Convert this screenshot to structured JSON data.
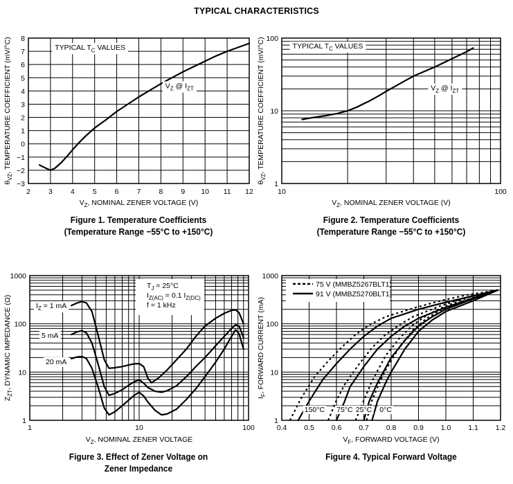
{
  "page": {
    "title": "TYPICAL CHARACTERISTICS"
  },
  "chart_data": [
    {
      "id": "fig1",
      "type": "line",
      "caption_line1": "Figure 1. Temperature Coefficients",
      "caption_line2": "(Temperature Range −55°C to +150°C)",
      "xlabel": "VZ, NOMINAL ZENER VOLTAGE (V)",
      "xlabel_main": "V",
      "xlabel_sub": "Z",
      "xlabel_rest": ", NOMINAL ZENER VOLTAGE (V)",
      "ylabel_main": "θ",
      "ylabel_sub": "VZ",
      "ylabel_rest": ", TEMPERATURE COEFFICIENT (mV/°C)",
      "xscale": "linear",
      "yscale": "linear",
      "xlim": [
        2,
        12
      ],
      "ylim": [
        -3,
        8
      ],
      "xticks": [
        2,
        3,
        4,
        5,
        6,
        7,
        8,
        9,
        10,
        11,
        12
      ],
      "xtick_labels": [
        "2",
        "3",
        "4",
        "5",
        "6",
        "7",
        "8",
        "9",
        "10",
        "11",
        "12"
      ],
      "yticks": [
        -3,
        -2,
        -1,
        0,
        1,
        2,
        3,
        4,
        5,
        6,
        7,
        8
      ],
      "ytick_labels": [
        "−3",
        "−2",
        "−1",
        "0",
        "1",
        "2",
        "3",
        "4",
        "5",
        "6",
        "7",
        "8"
      ],
      "grid": true,
      "annotations": [
        {
          "text_main": "TYPICAL T",
          "text_sub": "C",
          "text_rest": " VALUES",
          "at": [
            3.2,
            7.1
          ]
        },
        {
          "text_main": "V",
          "text_sub": "Z",
          "text_rest": " @ I",
          "text_sub2": "ZT",
          "at": [
            8.2,
            4.2
          ]
        }
      ],
      "series": [
        {
          "name": "VZ @ IZT",
          "style": "solid",
          "x": [
            2.5,
            2.8,
            3.0,
            3.2,
            3.5,
            3.8,
            4.0,
            4.3,
            4.6,
            5.0,
            5.5,
            6.0,
            6.5,
            7.0,
            7.5,
            8.0,
            8.5,
            9.0,
            9.5,
            10.0,
            10.5,
            11.0,
            11.5,
            12.0
          ],
          "y": [
            -1.6,
            -1.85,
            -2.0,
            -1.85,
            -1.4,
            -0.85,
            -0.45,
            0.1,
            0.6,
            1.2,
            1.8,
            2.45,
            3.0,
            3.55,
            4.05,
            4.55,
            5.0,
            5.45,
            5.85,
            6.25,
            6.65,
            7.0,
            7.3,
            7.6
          ]
        }
      ]
    },
    {
      "id": "fig2",
      "type": "line",
      "caption_line1": "Figure 2. Temperature Coefficients",
      "caption_line2": "(Temperature Range −55°C to +150°C)",
      "xlabel": "VZ, NOMINAL ZENER VOLTAGE (V)",
      "xlabel_main": "V",
      "xlabel_sub": "Z",
      "xlabel_rest": ", NOMINAL ZENER VOLTAGE (V)",
      "ylabel_main": "θ",
      "ylabel_sub": "VZ",
      "ylabel_rest": ", TEMPERATURE COEFFICIENT (mV/°C)",
      "xscale": "log",
      "yscale": "log",
      "xlim": [
        10,
        100
      ],
      "ylim": [
        1,
        100
      ],
      "xticks": [
        10,
        100
      ],
      "xtick_labels": [
        "10",
        "100"
      ],
      "yticks": [
        1,
        10,
        100
      ],
      "ytick_labels": [
        "1",
        "10",
        "100"
      ],
      "grid": true,
      "annotations": [
        {
          "text_main": "TYPICAL T",
          "text_sub": "C",
          "text_rest": " VALUES",
          "at": [
            11.2,
            72
          ]
        },
        {
          "text_main": "V",
          "text_sub": "Z",
          "text_rest": " @ I",
          "text_sub2": "ZT",
          "at": [
            48,
            19
          ]
        }
      ],
      "series": [
        {
          "name": "VZ @ IZT",
          "style": "solid",
          "x": [
            12.4,
            14,
            16,
            18,
            20,
            22,
            25,
            28,
            30,
            35,
            40,
            50,
            60,
            70,
            75
          ],
          "y": [
            7.6,
            8.1,
            8.6,
            9.2,
            10.0,
            11.2,
            13.5,
            16.3,
            18.5,
            24,
            30,
            40,
            52,
            65,
            73
          ]
        }
      ]
    },
    {
      "id": "fig3",
      "type": "line",
      "caption_line1": "Figure 3. Effect of Zener Voltage on",
      "caption_line2": "Zener Impedance",
      "xlabel": "VZ, NOMINAL ZENER VOLTAGE",
      "xlabel_main": "V",
      "xlabel_sub": "Z",
      "xlabel_rest": ", NOMINAL ZENER VOLTAGE",
      "ylabel_main": "Z",
      "ylabel_sub": "ZT",
      "ylabel_rest": ", DYNAMIC IMPEDANCE (Ω)",
      "xscale": "log",
      "yscale": "log",
      "xlim": [
        1,
        100
      ],
      "ylim": [
        1,
        1000
      ],
      "xticks": [
        1,
        10,
        100
      ],
      "xtick_labels": [
        "1",
        "10",
        "100"
      ],
      "yticks": [
        1,
        10,
        100,
        1000
      ],
      "ytick_labels": [
        "1",
        "10",
        "100",
        "1000"
      ],
      "grid": true,
      "conditions": [
        "T_J = 25°C",
        "I_Z(AC) = 0.1 I_Z(DC)",
        "f = 1 kHz"
      ],
      "conditions_display": [
        {
          "main": "T",
          "sub": "J",
          "rest": " = 25°C"
        },
        {
          "main": "I",
          "sub": "Z(AC)",
          "rest": " = 0.1 I",
          "sub2": "Z(DC)"
        },
        {
          "main": "f = 1 kHz",
          "sub": "",
          "rest": ""
        }
      ],
      "series": [
        {
          "name": "IZ = 1 mA",
          "label_main": "I",
          "label_sub": "Z",
          "label_rest": " = 1 mA",
          "style": "solid",
          "x": [
            2.4,
            2.7,
            3.0,
            3.3,
            3.7,
            4.2,
            4.8,
            5.3,
            6,
            7,
            8,
            9,
            10,
            11,
            12,
            13,
            15,
            18,
            22,
            27,
            33,
            40,
            50,
            60,
            70,
            76,
            82,
            90
          ],
          "y": [
            240,
            270,
            290,
            270,
            180,
            60,
            18,
            12,
            12.3,
            13,
            14,
            14.8,
            15,
            13,
            7.5,
            6,
            7.5,
            11,
            18,
            30,
            55,
            90,
            130,
            165,
            190,
            195,
            170,
            100
          ]
        },
        {
          "name": "5 mA",
          "label_main": "5 mA",
          "label_sub": "",
          "label_rest": "",
          "style": "solid",
          "x": [
            2.4,
            2.7,
            3.0,
            3.3,
            3.7,
            4.2,
            4.8,
            5.3,
            6,
            7,
            8,
            9,
            10,
            11,
            12,
            14,
            16,
            18,
            22,
            27,
            33,
            40,
            50,
            60,
            70,
            76,
            82,
            90
          ],
          "y": [
            60,
            68,
            72,
            65,
            40,
            15,
            5,
            3.3,
            3.6,
            4.3,
            5.3,
            6.3,
            6.9,
            5.9,
            4.8,
            4.0,
            3.8,
            4.1,
            5.2,
            8,
            13,
            20,
            35,
            55,
            80,
            95,
            90,
            52
          ]
        },
        {
          "name": "20 mA",
          "label_main": "20 mA",
          "label_sub": "",
          "label_rest": "",
          "style": "solid",
          "x": [
            2.4,
            2.7,
            3.0,
            3.3,
            3.7,
            4.2,
            4.8,
            5.3,
            6,
            7,
            8,
            9,
            10,
            11,
            12,
            14,
            16,
            18,
            22,
            27,
            33,
            40,
            50,
            60,
            70,
            76,
            82,
            90
          ],
          "y": [
            19,
            20.5,
            21,
            19,
            12,
            5,
            1.8,
            1.3,
            1.5,
            2.0,
            2.6,
            3.3,
            3.8,
            3.2,
            2.4,
            1.6,
            1.3,
            1.35,
            1.7,
            2.7,
            4.5,
            8,
            16,
            30,
            55,
            75,
            62,
            30
          ]
        }
      ]
    },
    {
      "id": "fig4",
      "type": "line",
      "caption_line1": "Figure 4. Typical Forward Voltage",
      "caption_line2": "",
      "xlabel": "VF, FORWARD VOLTAGE (V)",
      "xlabel_main": "V",
      "xlabel_sub": "F",
      "xlabel_rest": ", FORWARD VOLTAGE (V)",
      "ylabel_main": "I",
      "ylabel_sub": "F",
      "ylabel_rest": ", FORWARD CURRENT (mA)",
      "xscale": "linear",
      "yscale": "log",
      "xlim": [
        0.4,
        1.2
      ],
      "ylim": [
        1,
        1000
      ],
      "xticks": [
        0.4,
        0.5,
        0.6,
        0.7,
        0.8,
        0.9,
        1.0,
        1.1,
        1.2
      ],
      "xtick_labels": [
        "0.4",
        "0.5",
        "0.6",
        "0.7",
        "0.8",
        "0.9",
        "1.0",
        "1.1",
        "1.2"
      ],
      "yticks": [
        1,
        10,
        100,
        1000
      ],
      "ytick_labels": [
        "1",
        "10",
        "100",
        "1000"
      ],
      "grid": true,
      "legend": {
        "placement": "top-left",
        "entries": [
          {
            "label": "75 V (MMBZ5267BLT1)",
            "style": "dashed"
          },
          {
            "label": "91 V (MMBZ5270BLT1)",
            "style": "solid"
          }
        ]
      },
      "temperature_labels": [
        "150°C",
        "75°C",
        "25°C",
        "0°C"
      ],
      "series": [
        {
          "name": "91 V 150°C",
          "style": "solid",
          "x": [
            0.46,
            0.5,
            0.55,
            0.6,
            0.65,
            0.7,
            0.75,
            0.8,
            0.9,
            1.0,
            1.1,
            1.19
          ],
          "y": [
            1,
            2.5,
            7,
            15,
            30,
            55,
            90,
            130,
            200,
            280,
            380,
            500
          ]
        },
        {
          "name": "75 V 150°C",
          "style": "dashed",
          "x": [
            0.43,
            0.47,
            0.52,
            0.57,
            0.62,
            0.67,
            0.72,
            0.78,
            0.88,
            0.98,
            1.08,
            1.19
          ],
          "y": [
            1,
            2.8,
            8,
            17,
            33,
            60,
            95,
            140,
            210,
            300,
            400,
            500
          ]
        },
        {
          "name": "91 V 75°C",
          "style": "solid",
          "x": [
            0.6,
            0.63,
            0.65,
            0.7,
            0.75,
            0.8,
            0.85,
            0.9,
            1.0,
            1.1,
            1.19
          ],
          "y": [
            1,
            2.5,
            5,
            13,
            30,
            55,
            90,
            130,
            220,
            340,
            500
          ]
        },
        {
          "name": "75 V 75°C",
          "style": "dashed",
          "x": [
            0.57,
            0.6,
            0.63,
            0.68,
            0.73,
            0.78,
            0.83,
            0.88,
            0.98,
            1.08,
            1.19
          ],
          "y": [
            1,
            2.6,
            5.5,
            14,
            32,
            60,
            95,
            140,
            235,
            360,
            500
          ]
        },
        {
          "name": "91 V 25°C",
          "style": "solid",
          "x": [
            0.7,
            0.72,
            0.75,
            0.8,
            0.85,
            0.9,
            0.95,
            1.0,
            1.1,
            1.19
          ],
          "y": [
            1,
            2.5,
            6,
            20,
            45,
            90,
            140,
            200,
            330,
            500
          ]
        },
        {
          "name": "75 V 25°C",
          "style": "dashed",
          "x": [
            0.67,
            0.7,
            0.73,
            0.78,
            0.83,
            0.88,
            0.93,
            0.98,
            1.08,
            1.19
          ],
          "y": [
            1,
            2.6,
            6.5,
            22,
            50,
            95,
            150,
            210,
            350,
            500
          ]
        },
        {
          "name": "91 V 0°C",
          "style": "solid",
          "x": [
            0.73,
            0.75,
            0.78,
            0.8,
            0.85,
            0.9,
            0.95,
            1.0,
            1.1,
            1.19
          ],
          "y": [
            1,
            2.5,
            6,
            10,
            30,
            70,
            120,
            180,
            300,
            500
          ]
        },
        {
          "name": "75 V 0°C",
          "style": "dashed",
          "x": [
            0.71,
            0.73,
            0.76,
            0.78,
            0.83,
            0.88,
            0.93,
            0.98,
            1.08,
            1.19
          ],
          "y": [
            1,
            2.6,
            6.5,
            11,
            33,
            75,
            130,
            190,
            320,
            500
          ]
        }
      ]
    }
  ]
}
